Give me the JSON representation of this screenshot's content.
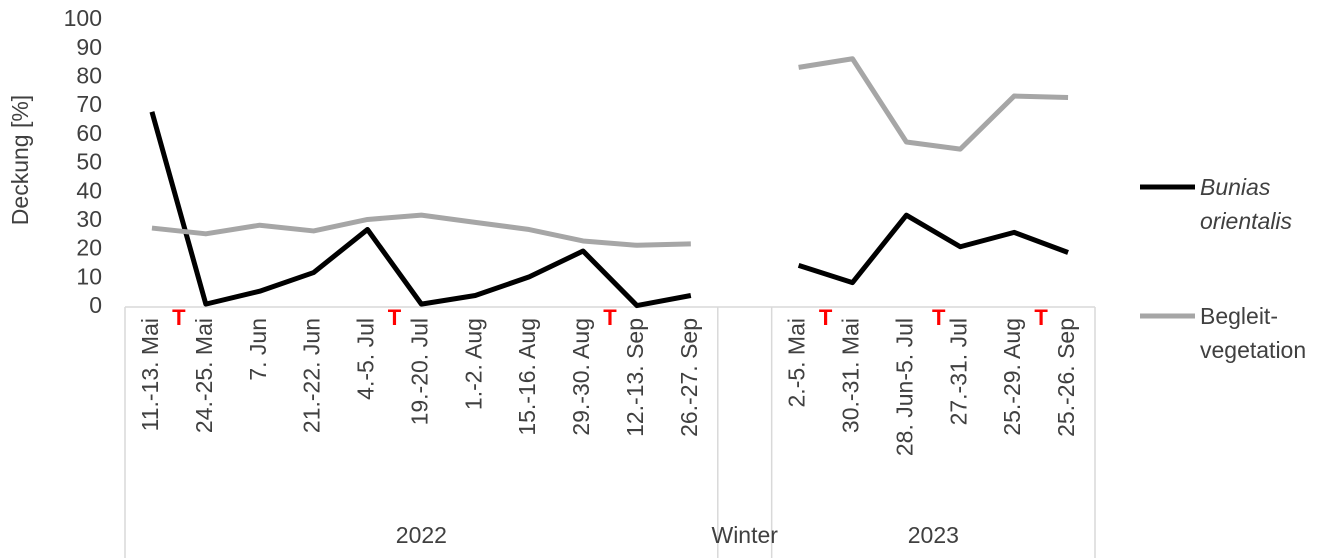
{
  "chart_data": {
    "type": "line",
    "ylabel": "Deckung [%]",
    "categories": [
      "11.-13. Mai",
      "24.-25. Mai",
      "7. Jun",
      "21.-22. Jun",
      "4.-5. Jul",
      "19.-20. Jul",
      "1.-2. Aug",
      "15.-16. Aug",
      "29.-30. Aug",
      "12.-13. Sep",
      "26.-27. Sep",
      null,
      "2.-5. Mai",
      "30.-31. Mai",
      "28. Jun-5. Jul",
      "27.-31. Jul",
      "25.-29. Aug",
      "25.-26. Sep"
    ],
    "groups": [
      "2022",
      "Winter",
      "2023"
    ],
    "series": [
      {
        "name": "Bunias orientalis",
        "color": "#000000",
        "values": [
          68,
          1,
          5.5,
          12,
          27,
          1,
          4,
          10.5,
          19.5,
          0.5,
          4,
          null,
          14.5,
          8.5,
          32,
          21,
          26,
          19
        ]
      },
      {
        "name": "Begleit-vegetation",
        "color": "#a6a6a6",
        "values": [
          27.5,
          25.5,
          28.5,
          26.5,
          30.5,
          32,
          29.5,
          27,
          23,
          21.5,
          22,
          null,
          83.5,
          86.5,
          57.5,
          55,
          73.5,
          73
        ]
      }
    ],
    "annotations": [
      "T",
      "T",
      "T",
      "T",
      "T",
      "T"
    ],
    "annotation_color": "#ff0000",
    "ylim": [
      0,
      100
    ],
    "yticks": [
      0,
      10,
      20,
      30,
      40,
      50,
      60,
      70,
      80,
      90,
      100
    ],
    "legend": "right"
  }
}
